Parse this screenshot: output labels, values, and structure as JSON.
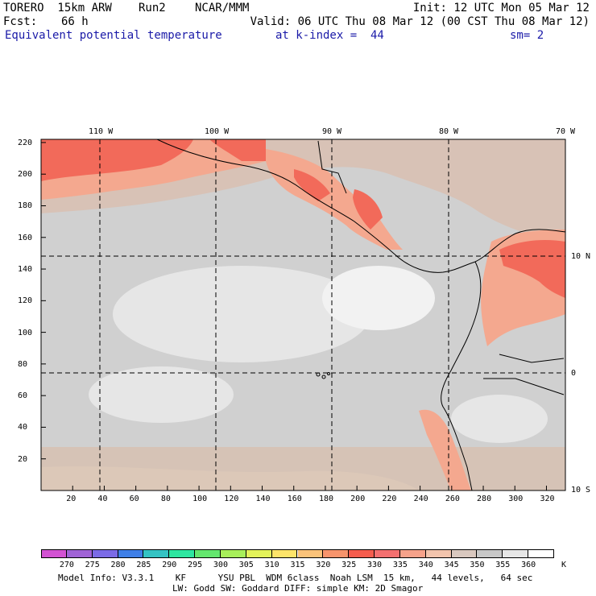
{
  "header": {
    "model": "TORERO  15km ARW",
    "run": "Run2",
    "org": "NCAR/MMM",
    "init": "Init: 12 UTC Mon 05 Mar 12",
    "fcst_label": "Fcst:",
    "fcst_value": "66 h",
    "valid": "Valid: 06 UTC Thu 08 Mar 12 (00 CST Thu 08 Mar 12)",
    "field": "Equivalent potential temperature",
    "level": "at k-index =  44",
    "smooth": "sm= 2"
  },
  "map": {
    "top_lon_labels": [
      "110 W",
      "100 W",
      "90 W",
      "80 W",
      "70 W"
    ],
    "right_lat_labels": [
      "10 N",
      "0",
      "10 S"
    ],
    "x_ticks": [
      "20",
      "40",
      "60",
      "80",
      "100",
      "120",
      "140",
      "160",
      "180",
      "200",
      "220",
      "240",
      "260",
      "280",
      "300",
      "320"
    ],
    "y_ticks": [
      "220",
      "200",
      "180",
      "160",
      "140",
      "120",
      "100",
      "80",
      "60",
      "40",
      "20"
    ],
    "island_label": ""
  },
  "colorbar": {
    "levels": [
      "270",
      "275",
      "280",
      "285",
      "290",
      "295",
      "300",
      "305",
      "310",
      "315",
      "320",
      "325",
      "330",
      "335",
      "340",
      "345",
      "350",
      "355",
      "360"
    ],
    "unit": "K",
    "colors": [
      "#d352d3",
      "#a063d6",
      "#7b6be6",
      "#3f7fe6",
      "#34c3c3",
      "#2ee6a0",
      "#64e66e",
      "#a8ef5a",
      "#e3f25a",
      "#fde46a",
      "#fbc37a",
      "#f7946c",
      "#f55d4e",
      "#f47070",
      "#f6a28a",
      "#f2c4ad",
      "#d9c8bf",
      "#c8c8c8",
      "#e6e6e6",
      "#ffffff"
    ]
  },
  "footer": {
    "line1": "Model Info: V3.3.1    KF      YSU PBL  WDM 6class  Noah LSM  15 km,   44 levels,   64 sec",
    "line2": "LW: Godd SW: Goddard DIFF: simple KM: 2D Smagor"
  }
}
